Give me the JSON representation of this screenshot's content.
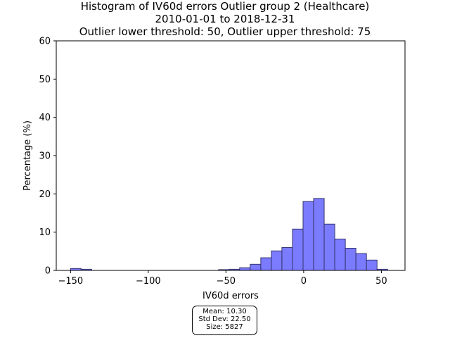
{
  "chart_data": {
    "type": "bar",
    "title_lines": [
      "Histogram of IV60d errors Outlier group 2 (Healthcare)",
      "2010-01-01 to 2018-12-31",
      "Outlier lower threshold: 50, Outlier upper threshold: 75"
    ],
    "xlabel": "IV60d errors",
    "ylabel": "Percentage (%)",
    "xlim": [
      -159.2,
      65.2
    ],
    "ylim": [
      0,
      60
    ],
    "x_ticks": [
      -150,
      -100,
      -50,
      0,
      50
    ],
    "x_tick_labels": [
      "−150",
      "−100",
      "−50",
      "0",
      "50"
    ],
    "y_ticks": [
      0,
      10,
      20,
      30,
      40,
      50,
      60
    ],
    "y_tick_labels": [
      "0",
      "10",
      "20",
      "30",
      "40",
      "50",
      "60"
    ],
    "grid": false,
    "bar_color": "#7b7bff",
    "bar_edge_color": "#34346e",
    "bins": [
      {
        "x0": -150.0,
        "x1": -143.2,
        "value": 0.5
      },
      {
        "x0": -143.2,
        "x1": -136.4,
        "value": 0.3
      },
      {
        "x0": -136.4,
        "x1": -129.6,
        "value": 0.0
      },
      {
        "x0": -129.6,
        "x1": -122.8,
        "value": 0.0
      },
      {
        "x0": -122.8,
        "x1": -116.0,
        "value": 0.0
      },
      {
        "x0": -116.0,
        "x1": -109.2,
        "value": 0.0
      },
      {
        "x0": -109.2,
        "x1": -102.4,
        "value": 0.0
      },
      {
        "x0": -102.4,
        "x1": -95.6,
        "value": 0.0
      },
      {
        "x0": -95.6,
        "x1": -88.8,
        "value": 0.0
      },
      {
        "x0": -88.8,
        "x1": -82.0,
        "value": 0.0
      },
      {
        "x0": -82.0,
        "x1": -75.2,
        "value": 0.0
      },
      {
        "x0": -75.2,
        "x1": -68.4,
        "value": 0.0
      },
      {
        "x0": -68.4,
        "x1": -61.6,
        "value": 0.0
      },
      {
        "x0": -61.6,
        "x1": -54.8,
        "value": 0.0
      },
      {
        "x0": -54.8,
        "x1": -48.0,
        "value": 0.2
      },
      {
        "x0": -48.0,
        "x1": -41.2,
        "value": 0.3
      },
      {
        "x0": -41.2,
        "x1": -34.4,
        "value": 0.7
      },
      {
        "x0": -34.4,
        "x1": -27.6,
        "value": 1.6
      },
      {
        "x0": -27.6,
        "x1": -20.8,
        "value": 3.3
      },
      {
        "x0": -20.8,
        "x1": -14.0,
        "value": 5.1
      },
      {
        "x0": -14.0,
        "x1": -7.2,
        "value": 6.0
      },
      {
        "x0": -7.2,
        "x1": -0.4,
        "value": 10.8
      },
      {
        "x0": -0.4,
        "x1": 6.4,
        "value": 18.0
      },
      {
        "x0": 6.4,
        "x1": 13.2,
        "value": 18.8
      },
      {
        "x0": 13.2,
        "x1": 20.0,
        "value": 12.1
      },
      {
        "x0": 20.0,
        "x1": 26.8,
        "value": 8.2
      },
      {
        "x0": 26.8,
        "x1": 33.6,
        "value": 5.8
      },
      {
        "x0": 33.6,
        "x1": 40.4,
        "value": 4.4
      },
      {
        "x0": 40.4,
        "x1": 47.2,
        "value": 2.7
      },
      {
        "x0": 47.2,
        "x1": 54.0,
        "value": 0.3
      }
    ]
  },
  "stats": {
    "mean": "Mean: 10.30",
    "std": "Std Dev: 22.50",
    "size": "Size: 5827"
  }
}
